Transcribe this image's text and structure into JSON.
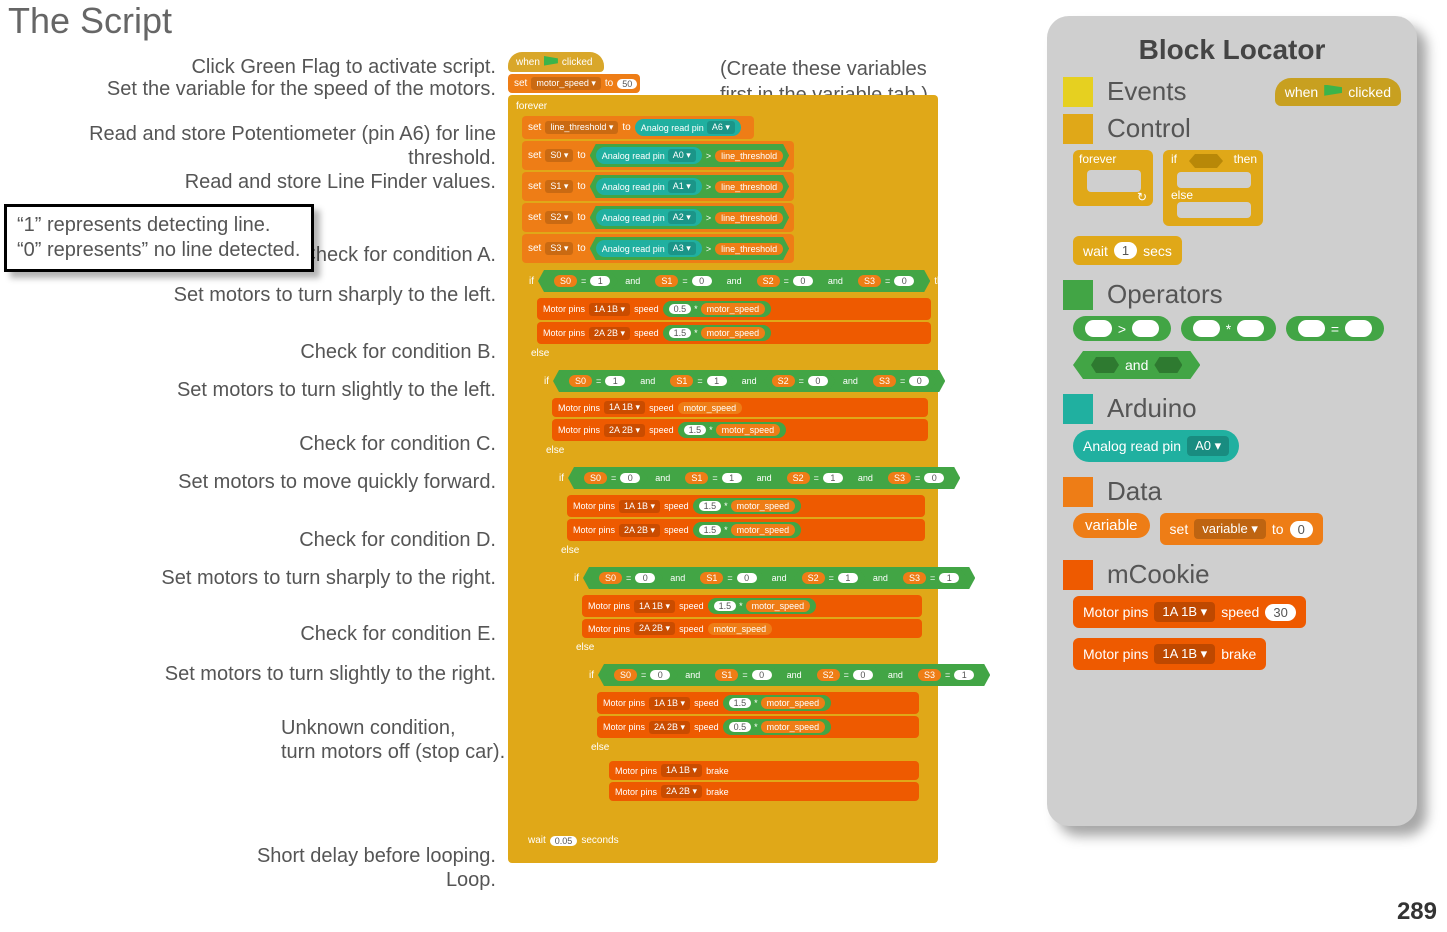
{
  "title": "The Script",
  "page_number": "289",
  "paren_note_l1": "(Create these variables",
  "paren_note_l2": "first in the variable tab.)",
  "note_l1": "“1” represents detecting line.",
  "note_l2": "“0” represents” no line detected.",
  "annots": {
    "a1": "Click Green Flag to activate script.",
    "a2": "Set the variable for the speed of the motors.",
    "a3": "Read and store Potentiometer (pin A6) for line threshold.",
    "a4": "Read and store Line Finder values.",
    "a5": "Check for condition A.",
    "a6": "Set motors to turn sharply to the left.",
    "a7": "Check for condition B.",
    "a8": "Set motors to turn slightly to the left.",
    "a9": "Check for condition C.",
    "a10": "Set motors to move quickly forward.",
    "a11": "Check for condition D.",
    "a12": "Set motors to turn sharply to the right.",
    "a13": "Check for condition E.",
    "a14": "Set motors to turn slightly to the right.",
    "a15a": "Unknown condition,",
    "a15b": "turn motors off (stop car).",
    "a16": "Short delay before looping.",
    "a17": "Loop."
  },
  "script": {
    "when_clicked": "when",
    "clicked": "clicked",
    "set": "set",
    "to": "to",
    "motor_speed_var": "motor_speed ▾",
    "motor_speed_val": "50",
    "forever": "forever",
    "line_threshold_var": "line_threshold ▾",
    "analog_read": "Analog read pin",
    "a6": "A6 ▾",
    "s0": "S0 ▾",
    "s1": "S1 ▾",
    "s2": "S2 ▾",
    "s3": "S3 ▾",
    "a0": "A0 ▾",
    "a1": "A1 ▾",
    "a2": "A2 ▾",
    "a3": "A3 ▾",
    "gt": ">",
    "lt_var": "line_threshold",
    "if": "if",
    "then": "then",
    "else": "else",
    "eq": "=",
    "and": "and",
    "s0n": "S0",
    "s1n": "S1",
    "s2n": "S2",
    "s3n": "S3",
    "v0": "0",
    "v1": "1",
    "motor_pins": "Motor pins",
    "pins_1a1b": "1A 1B ▾",
    "pins_2a2b": "2A 2B ▾",
    "speed": "speed",
    "brake": "brake",
    "mul": "*",
    "m05": "0.5",
    "m15": "1.5",
    "ms": "motor_speed",
    "wait": "wait",
    "seconds": "seconds",
    "delay": "0.05"
  },
  "locator": {
    "title": "Block Locator",
    "events": "Events",
    "control": "Control",
    "operators": "Operators",
    "arduino": "Arduino",
    "data": "Data",
    "mcookie": "mCookie",
    "when": "when",
    "clicked": "clicked",
    "forever": "forever",
    "if": "if",
    "then": "then",
    "else": "else",
    "wait": "wait",
    "one": "1",
    "secs": "secs",
    "gt": ">",
    "mul": "*",
    "eq": "=",
    "and": "and",
    "analog_read": "Analog read pin",
    "a0": "A0 ▾",
    "variable": "variable",
    "set": "set",
    "var_dd": "variable ▾",
    "to": "to",
    "zero": "0",
    "motor_pins": "Motor pins",
    "pins": "1A 1B ▾",
    "speed": "speed",
    "sp30": "30",
    "brake": "brake"
  },
  "colors": {
    "events": "#e6d020",
    "control": "#e0a818",
    "operators": "#42a545",
    "arduino": "#20b0a0",
    "data": "#ee7d16",
    "mcookie": "#ee5a00",
    "panel_bg": "#cfcfcf",
    "text": "#555555"
  }
}
